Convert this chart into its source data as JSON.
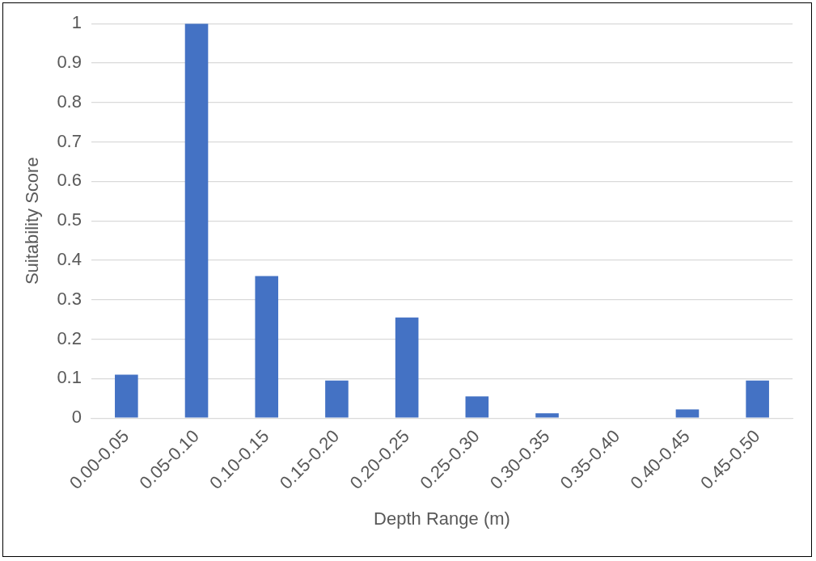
{
  "chart_data": {
    "type": "bar",
    "xlabel": "Depth Range (m)",
    "ylabel": "Suitability Score",
    "categories": [
      "0.00-0.05",
      "0.05-0.10",
      "0.10-0.15",
      "0.15-0.20",
      "0.20-0.25",
      "0.25-0.30",
      "0.30-0.35",
      "0.35-0.40",
      "0.40-0.45",
      "0.45-0.50"
    ],
    "values": [
      0.11,
      1.0,
      0.36,
      0.095,
      0.255,
      0.055,
      0.012,
      0,
      0.022,
      0.095
    ],
    "color": "#4472c4",
    "ylim": [
      0,
      1
    ],
    "yticks": [
      0,
      0.1,
      0.2,
      0.3,
      0.4,
      0.5,
      0.6,
      0.7,
      0.8,
      0.9,
      1
    ],
    "grid": "y",
    "legend": false
  }
}
